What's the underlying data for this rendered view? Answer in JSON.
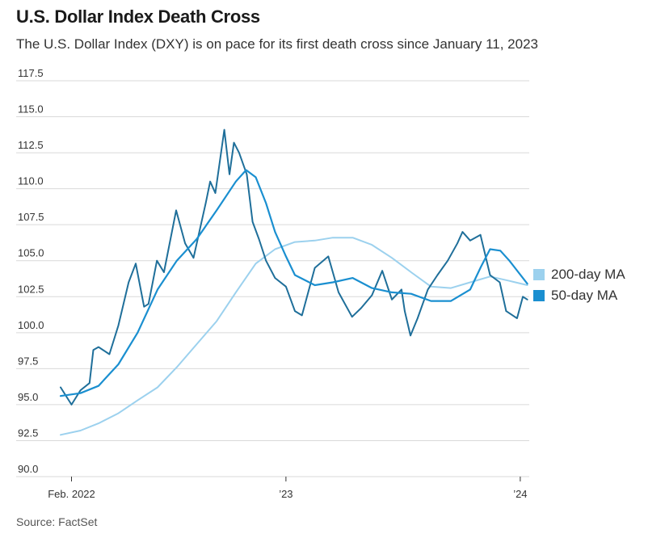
{
  "header": {
    "title": "U.S. Dollar Index Death Cross",
    "subtitle": "The U.S. Dollar Index (DXY) is on pace for its first death cross since January 11, 2023"
  },
  "footer": {
    "source": "Source: FactSet"
  },
  "colors": {
    "dxy": "#1f6f9a",
    "ma50": "#1a8fd0",
    "ma200": "#9cd1ee",
    "grid": "#d9d9d9"
  },
  "chart_data": {
    "type": "line",
    "title": "U.S. Dollar Index Death Cross",
    "x_tick_labels": [
      "Feb. 2022",
      "’23",
      "’24"
    ],
    "x_tick_dates": [
      "2022-02-01",
      "2023-01-01",
      "2024-01-01"
    ],
    "x_range": [
      "2022-01-15",
      "2024-01-15"
    ],
    "y_ticks": [
      90.0,
      92.5,
      95.0,
      97.5,
      100.0,
      102.5,
      105.0,
      107.5,
      110.0,
      112.5,
      115.0,
      117.5
    ],
    "y_tick_labels": [
      "90.0",
      "92.5",
      "95.0",
      "97.5",
      "100.0",
      "102.5",
      "105.0",
      "107.5",
      "110.0",
      "112.5",
      "115.0",
      "117.5"
    ],
    "ylim": [
      90,
      117.5
    ],
    "grid": true,
    "legend_position": "right",
    "series": [
      {
        "key": "dxy",
        "dates": [
          "2022-01-15",
          "2022-02-01",
          "2022-02-15",
          "2022-03-01",
          "2022-03-07",
          "2022-03-15",
          "2022-04-01",
          "2022-04-15",
          "2022-05-01",
          "2022-05-12",
          "2022-05-25",
          "2022-06-01",
          "2022-06-14",
          "2022-06-25",
          "2022-07-14",
          "2022-07-28",
          "2022-08-10",
          "2022-08-29",
          "2022-09-05",
          "2022-09-13",
          "2022-09-27",
          "2022-10-05",
          "2022-10-12",
          "2022-10-20",
          "2022-11-01",
          "2022-11-10",
          "2022-11-20",
          "2022-12-01",
          "2022-12-15",
          "2023-01-01",
          "2023-01-15",
          "2023-01-26",
          "2023-02-15",
          "2023-03-08",
          "2023-03-24",
          "2023-04-14",
          "2023-04-28",
          "2023-05-15",
          "2023-05-31",
          "2023-06-15",
          "2023-06-30",
          "2023-07-05",
          "2023-07-14",
          "2023-07-25",
          "2023-08-10",
          "2023-08-25",
          "2023-09-10",
          "2023-09-25",
          "2023-10-03",
          "2023-10-15",
          "2023-10-31",
          "2023-11-15",
          "2023-11-30",
          "2023-12-10",
          "2023-12-27",
          "2024-01-05",
          "2024-01-12"
        ],
        "values": [
          96.2,
          95.0,
          96.0,
          96.5,
          98.8,
          99.0,
          98.5,
          100.5,
          103.5,
          104.8,
          101.8,
          102.0,
          105.0,
          104.2,
          108.5,
          106.2,
          105.2,
          109.0,
          110.5,
          109.7,
          114.1,
          111.0,
          113.2,
          112.5,
          111.0,
          107.7,
          106.5,
          105.0,
          103.8,
          103.2,
          101.5,
          101.2,
          104.5,
          105.3,
          102.8,
          101.1,
          101.7,
          102.6,
          104.3,
          102.3,
          103.0,
          101.5,
          99.8,
          101.0,
          103.0,
          104.0,
          105.0,
          106.2,
          107.0,
          106.4,
          106.8,
          104.0,
          103.5,
          101.5,
          101.0,
          102.5,
          102.3
        ]
      },
      {
        "key": "ma50",
        "name": "50-day MA",
        "dates": [
          "2022-01-15",
          "2022-02-15",
          "2022-03-15",
          "2022-04-15",
          "2022-05-15",
          "2022-06-15",
          "2022-07-15",
          "2022-08-15",
          "2022-09-15",
          "2022-10-15",
          "2022-10-31",
          "2022-11-15",
          "2022-12-01",
          "2022-12-15",
          "2023-01-01",
          "2023-01-15",
          "2023-02-15",
          "2023-03-15",
          "2023-04-15",
          "2023-05-15",
          "2023-06-15",
          "2023-07-15",
          "2023-08-15",
          "2023-09-15",
          "2023-10-15",
          "2023-11-01",
          "2023-11-15",
          "2023-12-01",
          "2023-12-15",
          "2024-01-12"
        ],
        "values": [
          95.6,
          95.8,
          96.3,
          97.8,
          100.0,
          103.0,
          105.0,
          106.5,
          108.5,
          110.5,
          111.3,
          110.8,
          109.0,
          107.0,
          105.3,
          104.0,
          103.3,
          103.5,
          103.8,
          103.1,
          102.8,
          102.7,
          102.2,
          102.2,
          103.0,
          104.6,
          105.8,
          105.7,
          105.0,
          103.4
        ]
      },
      {
        "key": "ma200",
        "name": "200-day MA",
        "dates": [
          "2022-01-15",
          "2022-02-15",
          "2022-03-15",
          "2022-04-15",
          "2022-05-15",
          "2022-06-15",
          "2022-07-15",
          "2022-08-15",
          "2022-09-15",
          "2022-10-15",
          "2022-11-15",
          "2022-12-15",
          "2023-01-15",
          "2023-02-15",
          "2023-03-15",
          "2023-04-15",
          "2023-05-15",
          "2023-06-15",
          "2023-07-15",
          "2023-08-15",
          "2023-09-15",
          "2023-10-15",
          "2023-11-15",
          "2023-12-15",
          "2024-01-12"
        ],
        "values": [
          92.9,
          93.2,
          93.7,
          94.4,
          95.3,
          96.2,
          97.6,
          99.2,
          100.8,
          102.8,
          104.8,
          105.8,
          106.3,
          106.4,
          106.6,
          106.6,
          106.1,
          105.2,
          104.2,
          103.2,
          103.1,
          103.5,
          103.9,
          103.6,
          103.3
        ]
      }
    ]
  }
}
